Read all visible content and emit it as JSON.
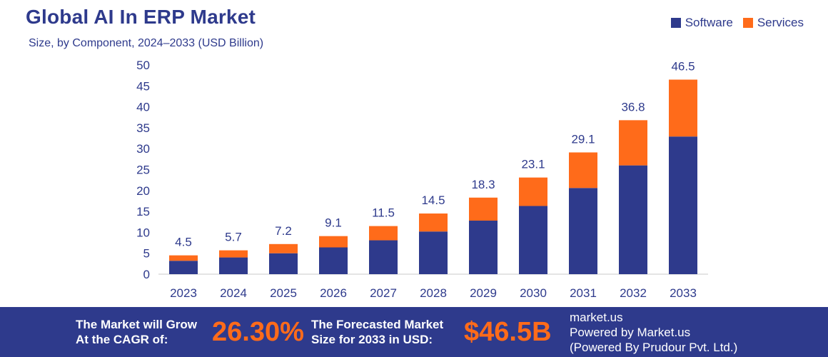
{
  "header": {
    "title": "Global AI In ERP Market",
    "subtitle": "Size, by Component, 2024–2033 (USD Billion)"
  },
  "legend": [
    {
      "label": "Software",
      "color": "#2e3a8c"
    },
    {
      "label": "Services",
      "color": "#ff6b1a"
    }
  ],
  "chart_data": {
    "type": "bar",
    "stacked": true,
    "title": "Global AI In ERP Market",
    "subtitle": "Size, by Component, 2024–2033 (USD Billion)",
    "categories": [
      "2023",
      "2024",
      "2025",
      "2026",
      "2027",
      "2028",
      "2029",
      "2030",
      "2031",
      "2032",
      "2033"
    ],
    "series": [
      {
        "name": "Software",
        "color": "#2e3a8c",
        "values": [
          3.2,
          4.0,
          5.0,
          6.4,
          8.1,
          10.2,
          12.8,
          16.3,
          20.6,
          26.0,
          32.9
        ]
      },
      {
        "name": "Services",
        "color": "#ff6b1a",
        "values": [
          1.3,
          1.7,
          2.2,
          2.7,
          3.4,
          4.3,
          5.5,
          6.8,
          8.5,
          10.8,
          13.6
        ]
      }
    ],
    "totals": [
      "4.5",
      "5.7",
      "7.2",
      "9.1",
      "11.5",
      "14.5",
      "18.3",
      "23.1",
      "29.1",
      "36.8",
      "46.5"
    ],
    "ylim": [
      0,
      50
    ],
    "yticks": [
      0,
      5,
      10,
      15,
      20,
      25,
      30,
      35,
      40,
      45,
      50
    ],
    "xlabel": "",
    "ylabel": "",
    "legend_position": "top-right"
  },
  "footer": {
    "cagr_label_line1": "The Market will Grow",
    "cagr_label_line2": "At the CAGR of:",
    "cagr_value": "26.30%",
    "forecast_label_line1": "The Forecasted Market",
    "forecast_label_line2": "Size for 2033 in USD:",
    "forecast_value": "$46.5B",
    "brand_line1": "market.us",
    "brand_line2": "Powered by Market.us",
    "brand_line3": "(Powered By Prudour Pvt. Ltd.)"
  }
}
